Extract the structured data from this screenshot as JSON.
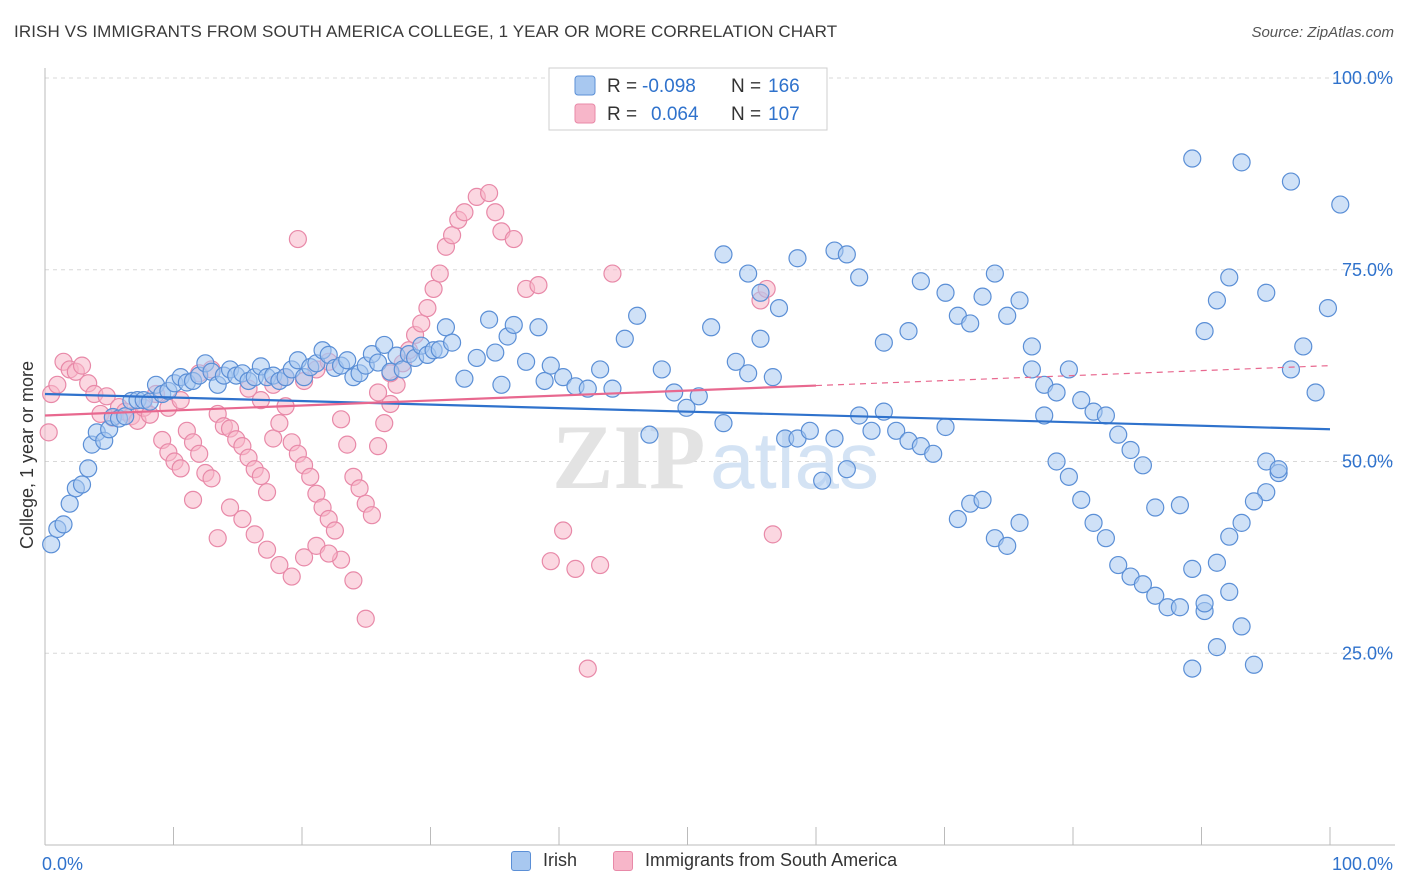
{
  "title": "IRISH VS IMMIGRANTS FROM SOUTH AMERICA COLLEGE, 1 YEAR OR MORE CORRELATION CHART",
  "source": "Source: ZipAtlas.com",
  "watermark": {
    "zip": "ZIP",
    "atlas": "atlas"
  },
  "legend_box": [
    {
      "r_label": "R =",
      "r_value": "-0.098",
      "n_label": "N =",
      "n_value": "166"
    },
    {
      "r_label": "R =",
      "r_value": "0.064",
      "n_label": "N =",
      "n_value": "107"
    }
  ],
  "colors": {
    "irish_fill": "#a8c8f0",
    "irish_stroke": "#5b8fd6",
    "irish_line": "#2f72cc",
    "sa_fill": "#f7b6c9",
    "sa_stroke": "#e889a8",
    "sa_line": "#e8688f",
    "value_text": "#2f72cc",
    "grid": "#d8d8d8"
  },
  "chart_data": {
    "type": "scatter",
    "title": "IRISH VS IMMIGRANTS FROM SOUTH AMERICA COLLEGE, 1 YEAR OR MORE CORRELATION CHART",
    "xlabel": "",
    "ylabel": "College, 1 year or more",
    "xlim": [
      0,
      100
    ],
    "ylim": [
      0,
      100
    ],
    "x_tick_labels": [
      "0.0%",
      "100.0%"
    ],
    "y_tick_values": [
      25,
      50,
      75,
      100
    ],
    "y_tick_labels": [
      "25.0%",
      "50.0%",
      "75.0%",
      "100.0%"
    ],
    "grid": true,
    "legend_position": "top-center",
    "series": [
      {
        "name": "Irish",
        "r": -0.098,
        "n": 166,
        "trend": {
          "x": [
            0,
            100
          ],
          "y": [
            58.8,
            54.2
          ],
          "solid_until": 100
        },
        "points": [
          [
            0.5,
            39.2
          ],
          [
            1,
            41.2
          ],
          [
            1.5,
            41.8
          ],
          [
            2,
            44.5
          ],
          [
            2.5,
            46.5
          ],
          [
            3,
            47
          ],
          [
            3.5,
            49.1
          ],
          [
            3.8,
            52.2
          ],
          [
            4.2,
            53.8
          ],
          [
            4.8,
            52.7
          ],
          [
            5.2,
            54.2
          ],
          [
            5.5,
            55.8
          ],
          [
            6,
            55.6
          ],
          [
            6.5,
            55.9
          ],
          [
            7,
            57.9
          ],
          [
            7.5,
            58
          ],
          [
            8,
            58
          ],
          [
            8.5,
            57.8
          ],
          [
            9,
            60
          ],
          [
            9.5,
            58.8
          ],
          [
            10,
            59.2
          ],
          [
            10.5,
            60.2
          ],
          [
            11,
            61
          ],
          [
            11.5,
            60.3
          ],
          [
            12,
            60.5
          ],
          [
            12.5,
            61.2
          ],
          [
            13,
            62.8
          ],
          [
            13.5,
            61.7
          ],
          [
            14,
            60
          ],
          [
            14.5,
            61.2
          ],
          [
            15,
            62
          ],
          [
            15.5,
            61.2
          ],
          [
            16,
            61.5
          ],
          [
            16.5,
            60.5
          ],
          [
            17,
            61
          ],
          [
            17.5,
            62.4
          ],
          [
            18,
            61
          ],
          [
            18.5,
            61.2
          ],
          [
            19,
            60.5
          ],
          [
            19.5,
            61
          ],
          [
            20,
            62
          ],
          [
            20.5,
            63.2
          ],
          [
            21,
            61
          ],
          [
            21.5,
            62.3
          ],
          [
            22,
            62.8
          ],
          [
            22.5,
            64.5
          ],
          [
            23,
            63.9
          ],
          [
            23.5,
            62.2
          ],
          [
            24,
            62.5
          ],
          [
            24.5,
            63.2
          ],
          [
            25,
            61
          ],
          [
            25.5,
            61.5
          ],
          [
            26,
            62.5
          ],
          [
            26.5,
            64
          ],
          [
            27,
            62.9
          ],
          [
            27.5,
            65.2
          ],
          [
            28,
            61.7
          ],
          [
            28.5,
            63.8
          ],
          [
            29,
            62
          ],
          [
            29.5,
            64
          ],
          [
            30,
            63.5
          ],
          [
            30.5,
            65.1
          ],
          [
            31,
            63.9
          ],
          [
            31.5,
            64.5
          ],
          [
            32,
            64.6
          ],
          [
            32.5,
            67.5
          ],
          [
            33,
            65.5
          ],
          [
            34,
            60.8
          ],
          [
            35,
            63.5
          ],
          [
            36,
            68.5
          ],
          [
            36.5,
            64.2
          ],
          [
            37,
            60
          ],
          [
            37.5,
            66.3
          ],
          [
            38,
            67.8
          ],
          [
            39,
            63
          ],
          [
            40,
            67.5
          ],
          [
            40.5,
            60.5
          ],
          [
            41,
            62.5
          ],
          [
            42,
            61
          ],
          [
            43,
            59.8
          ],
          [
            44,
            59.5
          ],
          [
            45,
            62
          ],
          [
            46,
            59.5
          ],
          [
            47,
            66
          ],
          [
            48,
            69
          ],
          [
            49,
            53.5
          ],
          [
            50,
            62
          ],
          [
            51,
            59
          ],
          [
            52,
            57
          ],
          [
            53,
            58.5
          ],
          [
            54,
            67.5
          ],
          [
            55,
            55
          ],
          [
            56,
            63
          ],
          [
            57,
            61.5
          ],
          [
            58,
            66
          ],
          [
            59,
            61
          ],
          [
            60,
            53
          ],
          [
            61,
            53
          ],
          [
            62,
            54
          ],
          [
            63,
            47.5
          ],
          [
            64,
            53
          ],
          [
            65,
            49
          ],
          [
            66,
            56
          ],
          [
            67,
            54
          ],
          [
            68,
            56.5
          ],
          [
            69,
            54
          ],
          [
            70,
            52.7
          ],
          [
            71,
            52
          ],
          [
            72,
            51
          ],
          [
            73,
            54.5
          ],
          [
            74,
            42.5
          ],
          [
            75,
            44.5
          ],
          [
            76,
            45
          ],
          [
            77,
            40
          ],
          [
            78,
            39
          ],
          [
            79,
            42
          ],
          [
            80,
            62
          ],
          [
            81,
            56
          ],
          [
            82,
            50
          ],
          [
            83,
            48
          ],
          [
            84,
            45
          ],
          [
            85,
            42
          ],
          [
            86,
            40
          ],
          [
            87,
            36.5
          ],
          [
            88,
            35
          ],
          [
            89,
            34
          ],
          [
            90,
            32.5
          ],
          [
            91,
            31
          ],
          [
            92,
            31
          ],
          [
            93,
            23
          ],
          [
            94,
            30.5
          ],
          [
            95,
            25.8
          ],
          [
            96,
            33
          ],
          [
            97,
            28.5
          ],
          [
            98,
            23.5
          ],
          [
            99,
            46
          ],
          [
            100,
            48.5
          ],
          [
            55,
            77
          ],
          [
            57,
            74.5
          ],
          [
            58,
            72
          ],
          [
            59.5,
            70
          ],
          [
            61,
            76.5
          ],
          [
            64,
            77.5
          ],
          [
            65,
            77
          ],
          [
            66,
            74
          ],
          [
            68,
            65.5
          ],
          [
            70,
            67
          ],
          [
            71,
            73.5
          ],
          [
            73,
            72
          ],
          [
            74,
            69
          ],
          [
            75,
            68
          ],
          [
            76,
            71.5
          ],
          [
            77,
            74.5
          ],
          [
            78,
            69
          ],
          [
            79,
            71
          ],
          [
            80,
            65
          ],
          [
            81,
            60
          ],
          [
            82,
            59
          ],
          [
            83,
            62
          ],
          [
            84,
            58
          ],
          [
            85,
            56.5
          ],
          [
            86,
            56
          ],
          [
            87,
            53.5
          ],
          [
            88,
            51.5
          ],
          [
            89,
            49.5
          ],
          [
            90,
            44
          ],
          [
            92,
            44.3
          ],
          [
            93,
            36
          ],
          [
            94,
            31.5
          ],
          [
            95,
            36.8
          ],
          [
            96,
            40.2
          ],
          [
            97,
            42
          ],
          [
            98,
            44.8
          ],
          [
            99,
            50
          ],
          [
            100,
            49
          ],
          [
            93,
            89.5
          ],
          [
            97,
            89
          ],
          [
            101,
            86.5
          ],
          [
            105,
            83.5
          ],
          [
            103,
            59
          ],
          [
            101,
            62
          ],
          [
            102,
            65
          ],
          [
            104,
            70
          ],
          [
            99,
            72
          ],
          [
            96,
            74
          ],
          [
            95,
            71
          ],
          [
            94,
            67
          ]
        ]
      },
      {
        "name": "Immigrants from South America",
        "r": 0.064,
        "n": 107,
        "trend": {
          "x": [
            0,
            100
          ],
          "y": [
            56.0,
            62.5
          ],
          "solid_until": 60
        },
        "points": [
          [
            0.3,
            53.8
          ],
          [
            0.5,
            58.8
          ],
          [
            1,
            60
          ],
          [
            1.5,
            63
          ],
          [
            2,
            62
          ],
          [
            2.5,
            61.7
          ],
          [
            3,
            62.5
          ],
          [
            3.5,
            60.2
          ],
          [
            4,
            58.8
          ],
          [
            4.5,
            56.2
          ],
          [
            5,
            58.5
          ],
          [
            5.5,
            55.7
          ],
          [
            6,
            57.1
          ],
          [
            6.5,
            56.5
          ],
          [
            7,
            55.9
          ],
          [
            7.5,
            55.3
          ],
          [
            8,
            57
          ],
          [
            8.5,
            56.1
          ],
          [
            9,
            58.8
          ],
          [
            9.5,
            52.8
          ],
          [
            10,
            51.2
          ],
          [
            10.5,
            50
          ],
          [
            11,
            49.1
          ],
          [
            11.5,
            54
          ],
          [
            12,
            52.5
          ],
          [
            12.5,
            51
          ],
          [
            13,
            48.5
          ],
          [
            13.5,
            47.8
          ],
          [
            14,
            56.2
          ],
          [
            14.5,
            54.6
          ],
          [
            15,
            54.3
          ],
          [
            15.5,
            52.9
          ],
          [
            16,
            52
          ],
          [
            16.5,
            50.5
          ],
          [
            17,
            49
          ],
          [
            17.5,
            48.1
          ],
          [
            18,
            46
          ],
          [
            18.5,
            53
          ],
          [
            19,
            55
          ],
          [
            19.5,
            57.2
          ],
          [
            20,
            52.5
          ],
          [
            20.5,
            51
          ],
          [
            21,
            49.5
          ],
          [
            21.5,
            48
          ],
          [
            22,
            45.8
          ],
          [
            22.5,
            44
          ],
          [
            23,
            42.5
          ],
          [
            23.5,
            41
          ],
          [
            24,
            55.5
          ],
          [
            24.5,
            52.2
          ],
          [
            25,
            48
          ],
          [
            25.5,
            46.5
          ],
          [
            26,
            44.5
          ],
          [
            26.5,
            43
          ],
          [
            27,
            52
          ],
          [
            27.5,
            55
          ],
          [
            28,
            57.5
          ],
          [
            28.5,
            60
          ],
          [
            29,
            62.8
          ],
          [
            29.5,
            64.5
          ],
          [
            30,
            66.5
          ],
          [
            30.5,
            68
          ],
          [
            31,
            70
          ],
          [
            31.5,
            72.5
          ],
          [
            32,
            74.5
          ],
          [
            32.5,
            78
          ],
          [
            33,
            79.5
          ],
          [
            33.5,
            81.5
          ],
          [
            34,
            82.5
          ],
          [
            35,
            84.5
          ],
          [
            36,
            85
          ],
          [
            36.5,
            82.5
          ],
          [
            37,
            80
          ],
          [
            38,
            79
          ],
          [
            39,
            72.5
          ],
          [
            40,
            73
          ],
          [
            41,
            37
          ],
          [
            42,
            41
          ],
          [
            43,
            36
          ],
          [
            44,
            23
          ],
          [
            45,
            36.5
          ],
          [
            46,
            74.5
          ],
          [
            20.5,
            79
          ],
          [
            24,
            37.2
          ],
          [
            25,
            34.5
          ],
          [
            26,
            29.5
          ],
          [
            12,
            45
          ],
          [
            14,
            40
          ],
          [
            15,
            44
          ],
          [
            16,
            42.5
          ],
          [
            17,
            40.5
          ],
          [
            18,
            38.5
          ],
          [
            19,
            36.5
          ],
          [
            20,
            35
          ],
          [
            21,
            37.5
          ],
          [
            22,
            39
          ],
          [
            23,
            38
          ],
          [
            10,
            57
          ],
          [
            11,
            58
          ],
          [
            12.5,
            61.5
          ],
          [
            13.5,
            62
          ],
          [
            16.5,
            59.5
          ],
          [
            17.5,
            58
          ],
          [
            18.5,
            60
          ],
          [
            19.5,
            61
          ],
          [
            21,
            60.5
          ],
          [
            22,
            62
          ],
          [
            23,
            63
          ],
          [
            27,
            59
          ],
          [
            28,
            61.5
          ],
          [
            58,
            71
          ],
          [
            58.5,
            72.5
          ],
          [
            59,
            40.5
          ]
        ]
      }
    ]
  },
  "bottom_legend": [
    {
      "label": "Irish"
    },
    {
      "label": "Immigrants from South America"
    }
  ]
}
